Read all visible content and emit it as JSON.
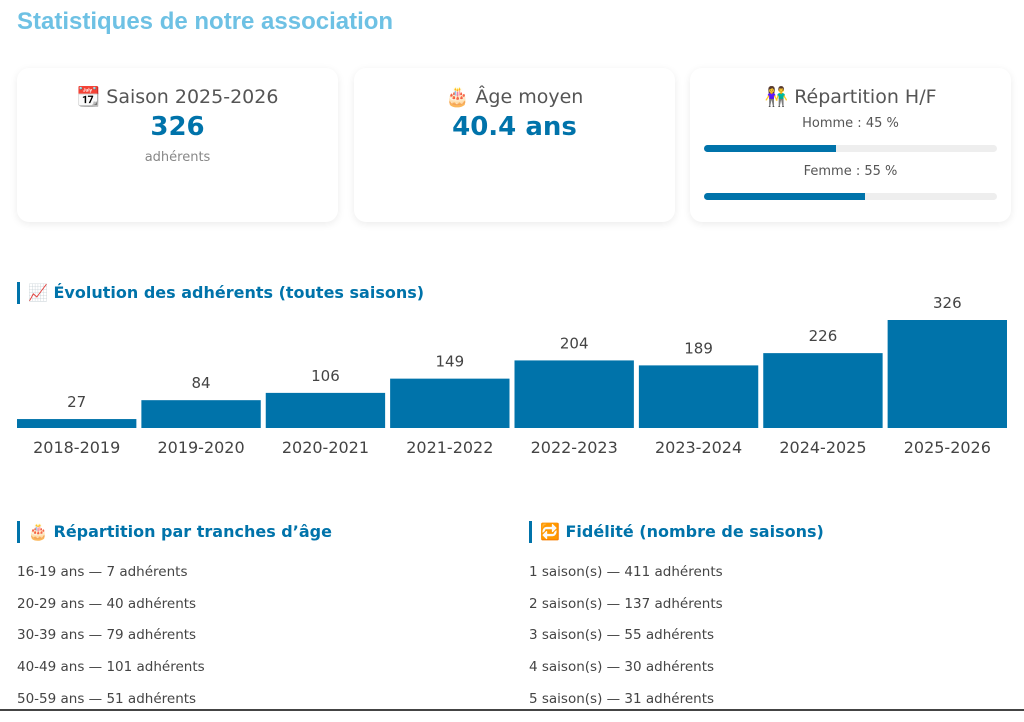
{
  "title": "Statistiques de notre association",
  "cards": [
    {
      "icon": "📆",
      "title": "Saison 2025-2026",
      "value": "326",
      "sub": "adhérents"
    },
    {
      "icon": "🎂",
      "title": "Âge moyen",
      "value": "40.4 ans"
    },
    {
      "icon": "👫",
      "title": "Répartition H/F",
      "homme_label": "Homme : 45 %",
      "homme_pct": 45,
      "femme_label": "Femme : 55 %",
      "femme_pct": 55
    }
  ],
  "evolution": {
    "icon": "📈",
    "title": "Évolution des adhérents (toutes saisons)"
  },
  "chart_data": {
    "type": "bar",
    "categories": [
      "2018-2019",
      "2019-2020",
      "2020-2021",
      "2021-2022",
      "2022-2023",
      "2023-2024",
      "2024-2025",
      "2025-2026"
    ],
    "values": [
      27,
      84,
      106,
      149,
      204,
      189,
      226,
      326
    ],
    "color": "#0073aa"
  },
  "age": {
    "icon": "🎂",
    "title": "Répartition par tranches d’âge",
    "items": [
      "16-19 ans — 7 adhérents",
      "20-29 ans — 40 adhérents",
      "30-39 ans — 79 adhérents",
      "40-49 ans — 101 adhérents",
      "50-59 ans — 51 adhérents"
    ]
  },
  "fidelite": {
    "icon": "🔁",
    "title": "Fidélité (nombre de saisons)",
    "items": [
      "1 saison(s) — 411 adhérents",
      "2 saison(s) — 137 adhérents",
      "3 saison(s) — 55 adhérents",
      "4 saison(s) — 30 adhérents",
      "5 saison(s) — 31 adhérents"
    ]
  }
}
